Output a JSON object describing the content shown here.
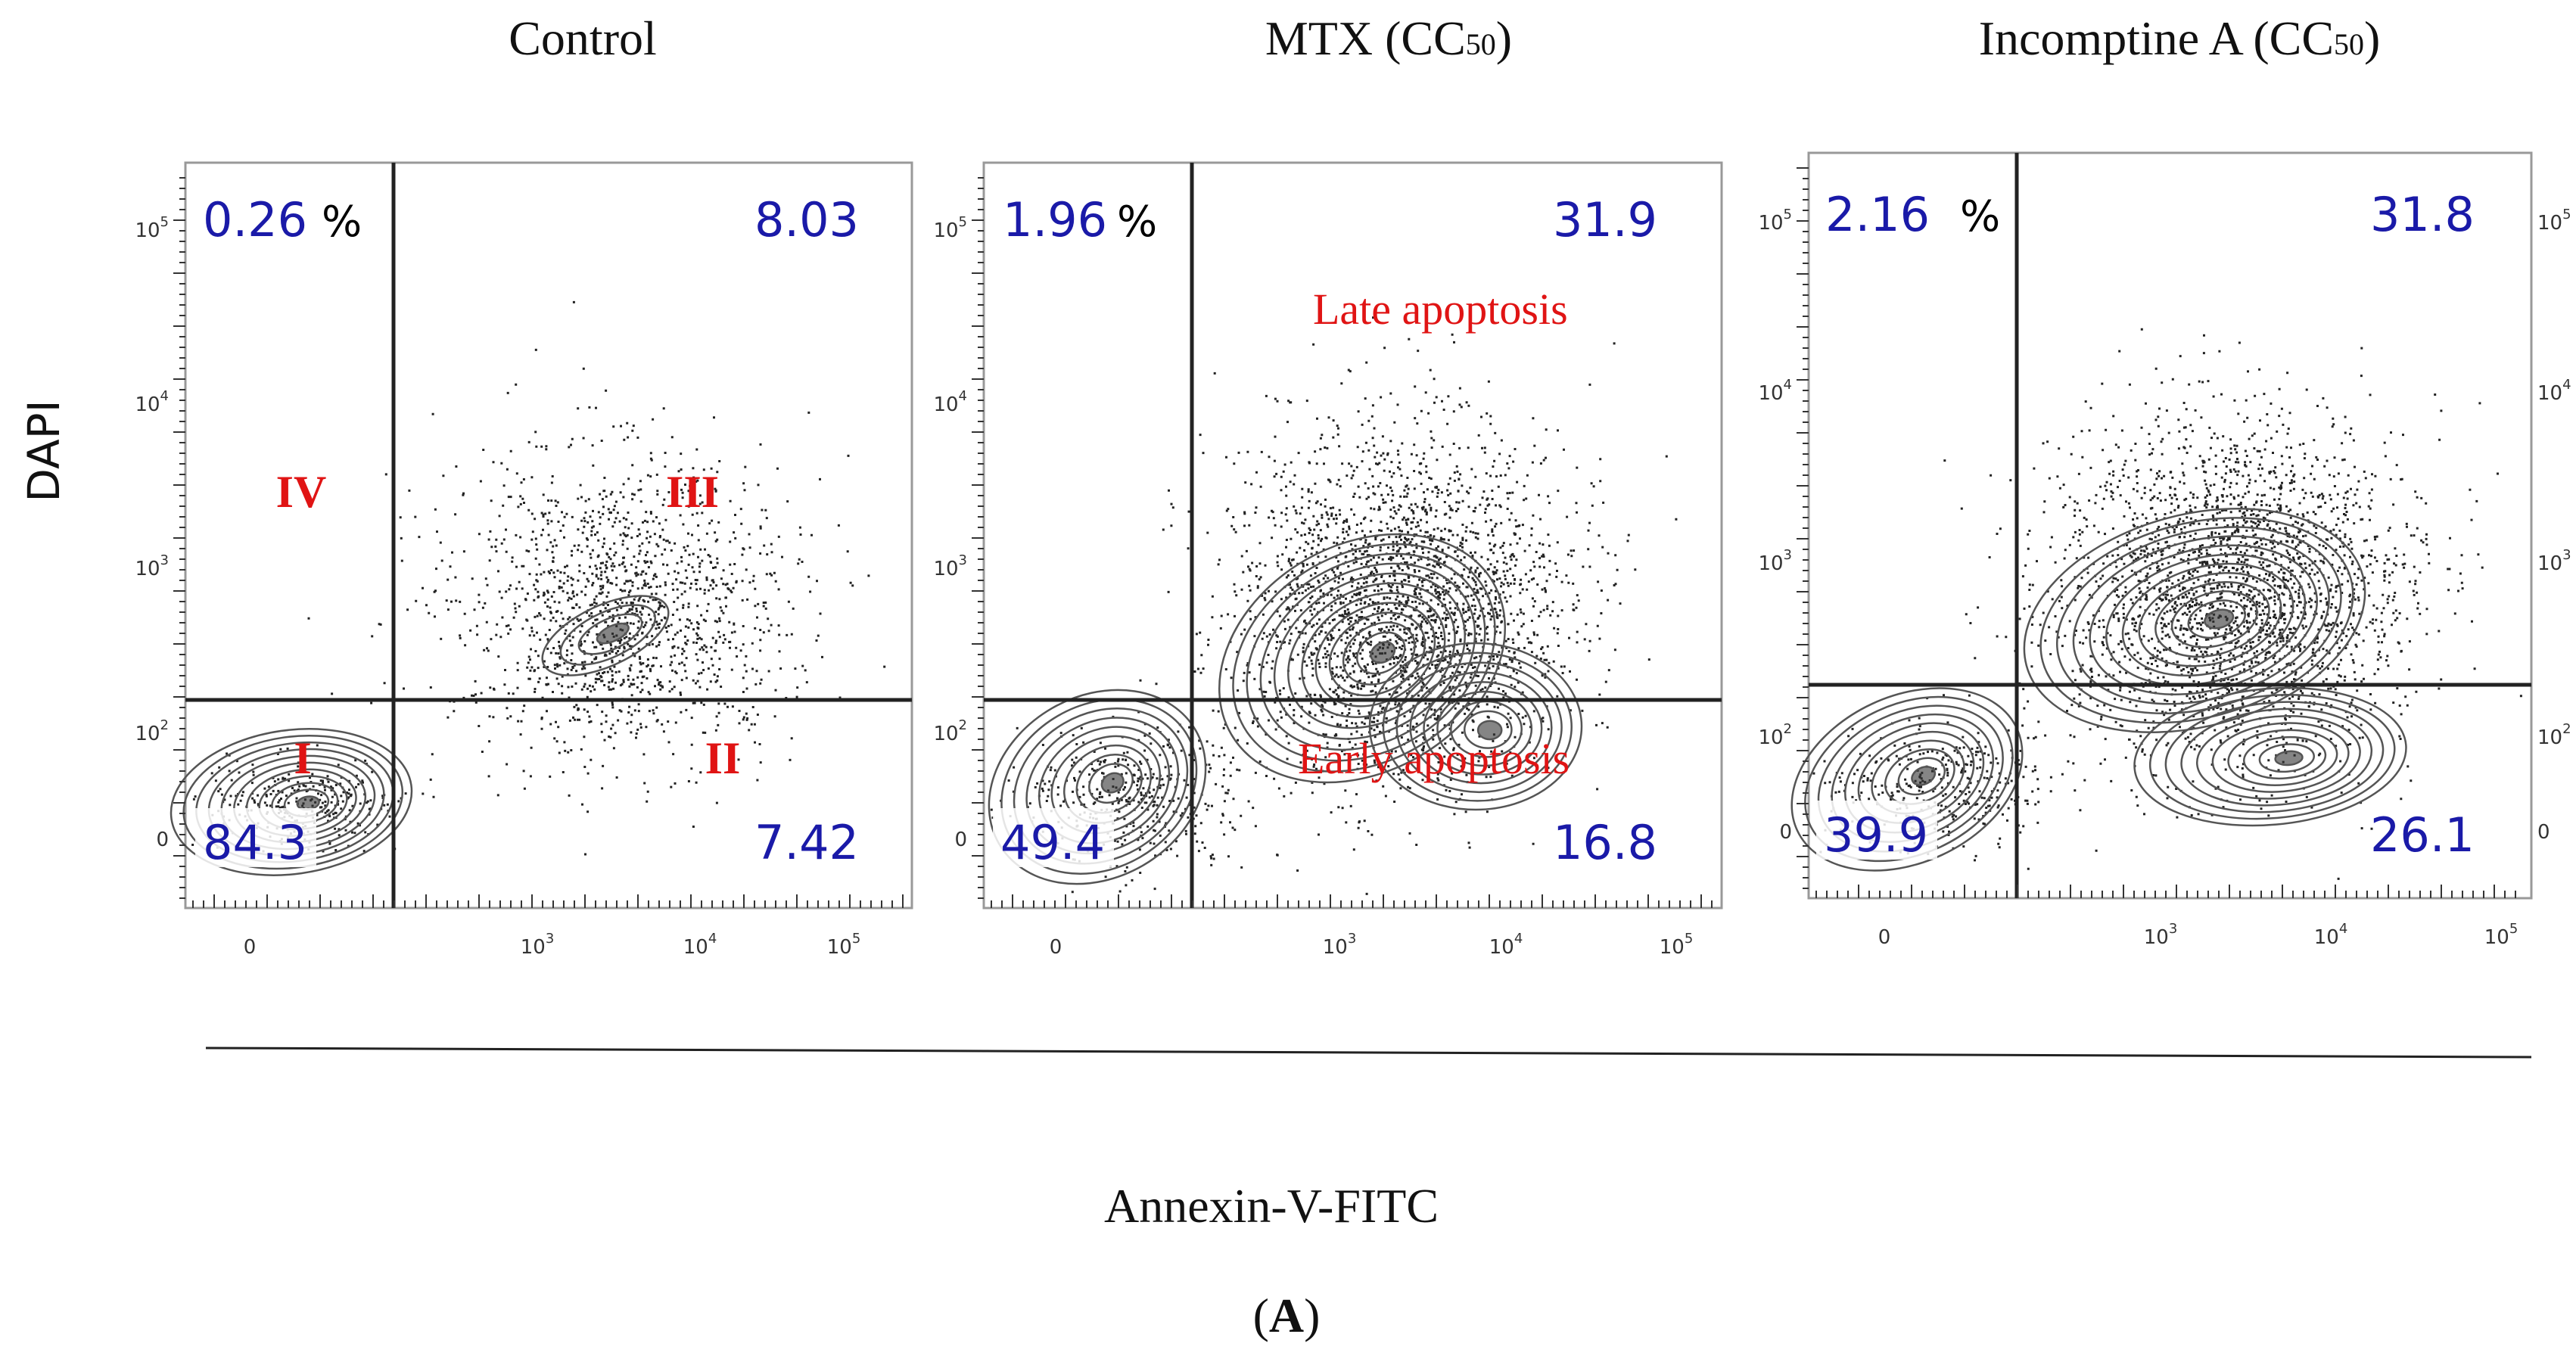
{
  "figure": {
    "x_label": "Annexin-V-FITC",
    "y_label": "DAPI",
    "panel_label": "(A)",
    "panel_label_letter": "A",
    "colors": {
      "quadrant_percent": "#1a1aa8",
      "annotation": "#e01414",
      "contour": "#555555",
      "dots": "#222222"
    }
  },
  "chart_data": [
    {
      "type": "scatter",
      "title": "Control",
      "xlabel": "Annexin-V-FITC",
      "ylabel": "DAPI",
      "x_scale": "biexponential",
      "y_scale": "biexponential",
      "x_ticks": [
        "0",
        "10^3",
        "10^4",
        "10^5"
      ],
      "y_ticks": [
        "0",
        "10^2",
        "10^3",
        "10^4",
        "10^5"
      ],
      "quadrants": {
        "upper_left": "0.26",
        "upper_right": "8.03",
        "lower_left": "84.3",
        "lower_right": "7.42",
        "percent_sign": "%"
      },
      "region_labels": {
        "I": "I",
        "II": "II",
        "III": "III",
        "IV": "IV"
      }
    },
    {
      "type": "scatter",
      "title": "MTX (CC",
      "title_sub": "50",
      "title_end": ")",
      "xlabel": "Annexin-V-FITC",
      "ylabel": "DAPI",
      "x_scale": "biexponential",
      "y_scale": "biexponential",
      "x_ticks": [
        "0",
        "10^3",
        "10^4",
        "10^5"
      ],
      "y_ticks": [
        "0",
        "10^2",
        "10^3",
        "10^4",
        "10^5"
      ],
      "quadrants": {
        "upper_left": "1.96",
        "upper_right": "31.9",
        "lower_left": "49.4",
        "lower_right": "16.8",
        "percent_sign": "%"
      },
      "annotations": {
        "late": "Late apoptosis",
        "early": "Early apoptosis"
      }
    },
    {
      "type": "scatter",
      "title": "Incomptine A (CC",
      "title_sub": "50",
      "title_end": ")",
      "xlabel": "Annexin-V-FITC",
      "ylabel": "DAPI",
      "x_scale": "biexponential",
      "y_scale": "biexponential",
      "x_ticks": [
        "0",
        "10^3",
        "10^4",
        "10^5"
      ],
      "y_ticks": [
        "0",
        "10^2",
        "10^3",
        "10^4",
        "10^5"
      ],
      "quadrants": {
        "upper_left": "2.16",
        "upper_right": "31.8",
        "lower_left": "39.9",
        "lower_right": "26.1",
        "percent_sign": "%"
      }
    }
  ]
}
